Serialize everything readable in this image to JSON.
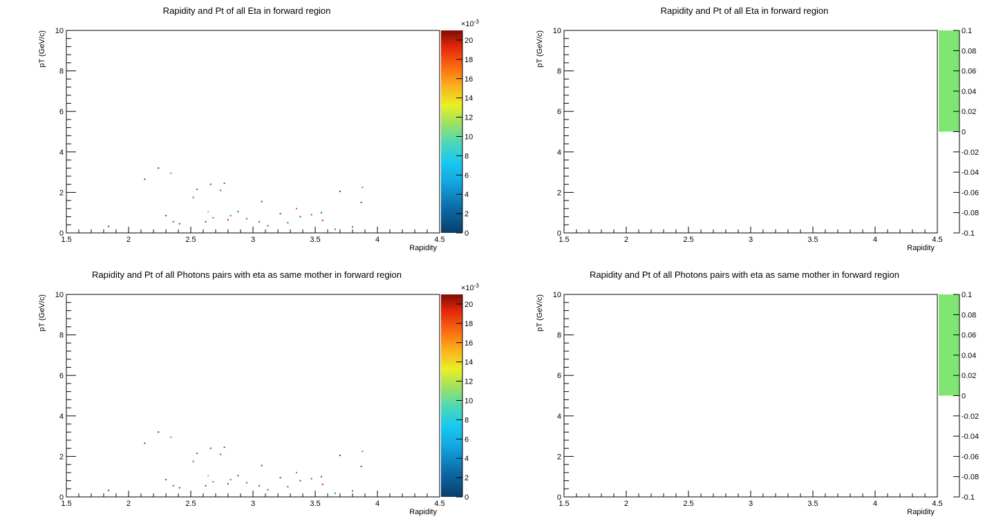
{
  "chart_data": [
    {
      "type": "heatmap",
      "title": "Rapidity and Pt of all Eta in forward region",
      "xlabel": "Rapidity",
      "ylabel": "pT (GeV/c)",
      "xlim": [
        1.5,
        4.5
      ],
      "ylim": [
        0,
        10
      ],
      "xticks": [
        "1.5",
        "2",
        "2.5",
        "3",
        "3.5",
        "4",
        "4.5"
      ],
      "yticks": [
        "0",
        "2",
        "4",
        "6",
        "8",
        "10"
      ],
      "zlim": [
        0,
        0.021
      ],
      "zticks": [
        "0",
        "2",
        "4",
        "6",
        "8",
        "10",
        "12",
        "14",
        "16",
        "18",
        "20"
      ],
      "zexponent": "×10",
      "zexponent_power": "-3",
      "palette": "kBird-like (blue-cyan-green-yellow-orange-red)",
      "grid": false,
      "points": [
        {
          "x": 1.84,
          "y": 0.32,
          "z": 0.001
        },
        {
          "x": 2.13,
          "y": 2.65,
          "z": 0.02
        },
        {
          "x": 2.24,
          "y": 3.2,
          "z": 0.001
        },
        {
          "x": 2.34,
          "y": 2.95,
          "z": 0.018
        },
        {
          "x": 2.3,
          "y": 0.85,
          "z": 0.002
        },
        {
          "x": 2.36,
          "y": 0.55,
          "z": 0.003
        },
        {
          "x": 2.41,
          "y": 0.45,
          "z": 0.002
        },
        {
          "x": 2.52,
          "y": 1.75,
          "z": 0.003
        },
        {
          "x": 2.55,
          "y": 2.15,
          "z": 0.002
        },
        {
          "x": 2.62,
          "y": 0.55,
          "z": 0.02
        },
        {
          "x": 2.64,
          "y": 1.05,
          "z": 0.016
        },
        {
          "x": 2.66,
          "y": 2.4,
          "z": 0.002
        },
        {
          "x": 2.68,
          "y": 0.75,
          "z": 0.004
        },
        {
          "x": 2.74,
          "y": 2.1,
          "z": 0.003
        },
        {
          "x": 2.77,
          "y": 2.45,
          "z": 0.002
        },
        {
          "x": 2.8,
          "y": 0.65,
          "z": 0.02
        },
        {
          "x": 2.82,
          "y": 0.85,
          "z": 0.004
        },
        {
          "x": 2.88,
          "y": 1.05,
          "z": 0.002
        },
        {
          "x": 2.95,
          "y": 0.7,
          "z": 0.003
        },
        {
          "x": 3.05,
          "y": 0.55,
          "z": 0.002
        },
        {
          "x": 3.07,
          "y": 1.55,
          "z": 0.002
        },
        {
          "x": 3.12,
          "y": 0.35,
          "z": 0.003
        },
        {
          "x": 3.22,
          "y": 0.95,
          "z": 0.002
        },
        {
          "x": 3.28,
          "y": 0.5,
          "z": 0.003
        },
        {
          "x": 3.35,
          "y": 1.2,
          "z": 0.018
        },
        {
          "x": 3.38,
          "y": 0.8,
          "z": 0.002
        },
        {
          "x": 3.47,
          "y": 0.9,
          "z": 0.003
        },
        {
          "x": 3.55,
          "y": 1.0,
          "z": 0.002
        },
        {
          "x": 3.56,
          "y": 0.62,
          "z": 0.02
        },
        {
          "x": 3.66,
          "y": 0.18,
          "z": 0.004
        },
        {
          "x": 3.7,
          "y": 2.05,
          "z": 0.002
        },
        {
          "x": 3.88,
          "y": 2.25,
          "z": 0.018
        },
        {
          "x": 3.87,
          "y": 1.5,
          "z": 0.002
        },
        {
          "x": 3.8,
          "y": 0.3,
          "z": 0.003
        }
      ]
    },
    {
      "type": "heatmap",
      "title": "Rapidity and Pt of all Eta in forward region",
      "xlabel": "Rapidity",
      "ylabel": "pT (GeV/c)",
      "xlim": [
        1.5,
        4.5
      ],
      "ylim": [
        0,
        10
      ],
      "xticks": [
        "1.5",
        "2",
        "2.5",
        "3",
        "3.5",
        "4",
        "4.5"
      ],
      "yticks": [
        "0",
        "2",
        "4",
        "6",
        "8",
        "10"
      ],
      "zlim": [
        -0.1,
        0.1
      ],
      "zticks": [
        "-0.1",
        "-0.08",
        "-0.06",
        "-0.04",
        "-0.02",
        "0",
        "0.02",
        "0.04",
        "0.06",
        "0.08",
        "0.1"
      ],
      "zfill_color": "#80e673",
      "grid": false,
      "points": []
    },
    {
      "type": "heatmap",
      "title": "Rapidity and Pt of all Photons pairs with eta as same mother in forward region",
      "xlabel": "Rapidity",
      "ylabel": "pT (GeV/c)",
      "xlim": [
        1.5,
        4.5
      ],
      "ylim": [
        0,
        10
      ],
      "xticks": [
        "1.5",
        "2",
        "2.5",
        "3",
        "3.5",
        "4",
        "4.5"
      ],
      "yticks": [
        "0",
        "2",
        "4",
        "6",
        "8",
        "10"
      ],
      "zlim": [
        0,
        0.021
      ],
      "zticks": [
        "0",
        "2",
        "4",
        "6",
        "8",
        "10",
        "12",
        "14",
        "16",
        "18",
        "20"
      ],
      "zexponent": "×10",
      "zexponent_power": "-3",
      "palette": "kBird-like (blue-cyan-green-yellow-orange-red)",
      "grid": false,
      "points": [
        {
          "x": 1.84,
          "y": 0.32,
          "z": 0.001
        },
        {
          "x": 2.13,
          "y": 2.65,
          "z": 0.02
        },
        {
          "x": 2.24,
          "y": 3.2,
          "z": 0.001
        },
        {
          "x": 2.34,
          "y": 2.95,
          "z": 0.018
        },
        {
          "x": 2.3,
          "y": 0.85,
          "z": 0.002
        },
        {
          "x": 2.36,
          "y": 0.55,
          "z": 0.003
        },
        {
          "x": 2.41,
          "y": 0.45,
          "z": 0.002
        },
        {
          "x": 2.52,
          "y": 1.75,
          "z": 0.003
        },
        {
          "x": 2.55,
          "y": 2.15,
          "z": 0.002
        },
        {
          "x": 2.62,
          "y": 0.55,
          "z": 0.02
        },
        {
          "x": 2.64,
          "y": 1.05,
          "z": 0.016
        },
        {
          "x": 2.66,
          "y": 2.4,
          "z": 0.002
        },
        {
          "x": 2.68,
          "y": 0.75,
          "z": 0.004
        },
        {
          "x": 2.74,
          "y": 2.1,
          "z": 0.003
        },
        {
          "x": 2.77,
          "y": 2.45,
          "z": 0.002
        },
        {
          "x": 2.8,
          "y": 0.65,
          "z": 0.02
        },
        {
          "x": 2.82,
          "y": 0.85,
          "z": 0.004
        },
        {
          "x": 2.88,
          "y": 1.05,
          "z": 0.002
        },
        {
          "x": 2.95,
          "y": 0.7,
          "z": 0.003
        },
        {
          "x": 3.05,
          "y": 0.55,
          "z": 0.002
        },
        {
          "x": 3.07,
          "y": 1.55,
          "z": 0.002
        },
        {
          "x": 3.12,
          "y": 0.35,
          "z": 0.003
        },
        {
          "x": 3.22,
          "y": 0.95,
          "z": 0.002
        },
        {
          "x": 3.28,
          "y": 0.5,
          "z": 0.003
        },
        {
          "x": 3.35,
          "y": 1.2,
          "z": 0.018
        },
        {
          "x": 3.38,
          "y": 0.8,
          "z": 0.002
        },
        {
          "x": 3.47,
          "y": 0.9,
          "z": 0.003
        },
        {
          "x": 3.55,
          "y": 1.0,
          "z": 0.002
        },
        {
          "x": 3.56,
          "y": 0.62,
          "z": 0.02
        },
        {
          "x": 3.66,
          "y": 0.18,
          "z": 0.004
        },
        {
          "x": 3.7,
          "y": 2.05,
          "z": 0.002
        },
        {
          "x": 3.88,
          "y": 2.25,
          "z": 0.018
        },
        {
          "x": 3.87,
          "y": 1.5,
          "z": 0.002
        },
        {
          "x": 3.8,
          "y": 0.3,
          "z": 0.003
        }
      ]
    },
    {
      "type": "heatmap",
      "title": "Rapidity and Pt of all Photons pairs with eta as same mother in forward region",
      "xlabel": "Rapidity",
      "ylabel": "pT (GeV/c)",
      "xlim": [
        1.5,
        4.5
      ],
      "ylim": [
        0,
        10
      ],
      "xticks": [
        "1.5",
        "2",
        "2.5",
        "3",
        "3.5",
        "4",
        "4.5"
      ],
      "yticks": [
        "0",
        "2",
        "4",
        "6",
        "8",
        "10"
      ],
      "zlim": [
        -0.1,
        0.1
      ],
      "zticks": [
        "-0.1",
        "-0.08",
        "-0.06",
        "-0.04",
        "-0.02",
        "0",
        "0.02",
        "0.04",
        "0.06",
        "0.08",
        "0.1"
      ],
      "zfill_color": "#80e673",
      "grid": false,
      "points": []
    }
  ]
}
